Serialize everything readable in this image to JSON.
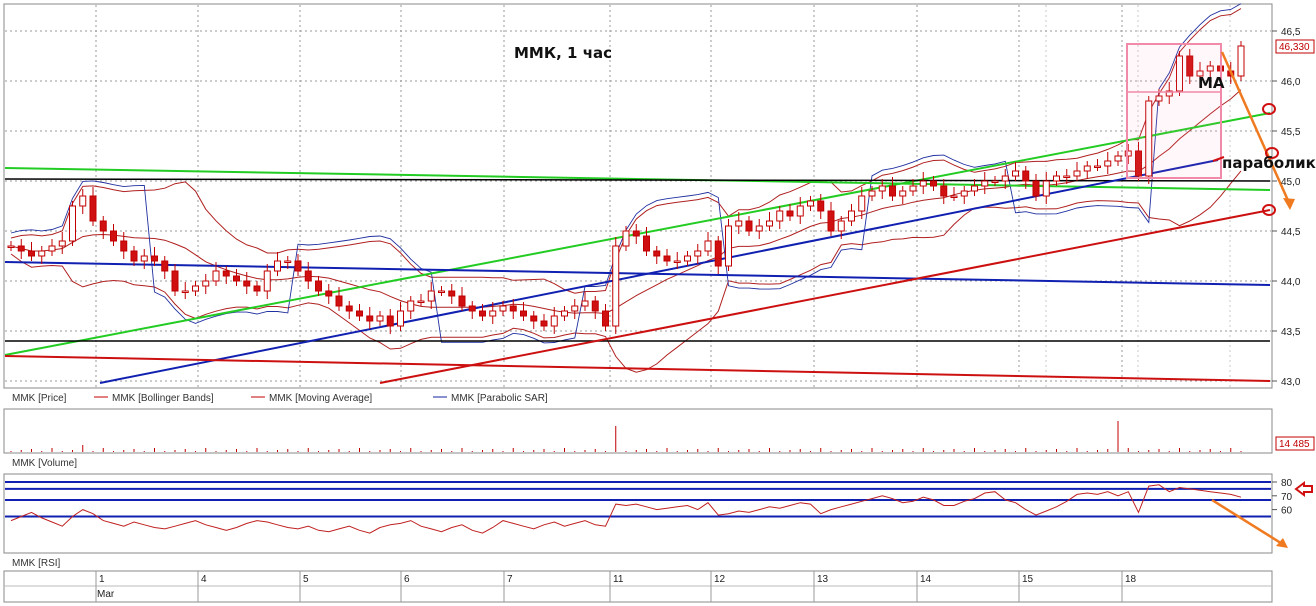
{
  "chart_data": {
    "type": "candlestick",
    "title": "ММК,  1 час",
    "annotations": {
      "ma": "МА",
      "parabolic": "параболик"
    },
    "price_axis": {
      "ylim": [
        43.0,
        46.5
      ],
      "ticks": [
        "46,5",
        "46,0",
        "45,5",
        "45,0",
        "44,5",
        "44,0",
        "43,5",
        "43,0"
      ],
      "last_price_label": "46,330"
    },
    "legend": [
      {
        "label": "MMK [Price]",
        "color": "#c00000"
      },
      {
        "label": "MMK [Bollinger Bands]",
        "color": "#c00000"
      },
      {
        "label": "MMK [Moving Average]",
        "color": "#c00000"
      },
      {
        "label": "MMK [Parabolic SAR]",
        "color": "#1020a0"
      }
    ],
    "volume": {
      "label": "MMK [Volume]",
      "last_value_label": "14 485"
    },
    "rsi": {
      "label": "MMK [RSI]",
      "ticks": [
        "80",
        "70",
        "60"
      ],
      "levels": [
        80,
        75,
        67,
        55
      ]
    },
    "dates": [
      "1",
      "4",
      "5",
      "6",
      "7",
      "11",
      "12",
      "13",
      "14",
      "15",
      "18"
    ],
    "month_label": "Mar",
    "closes": [
      44.35,
      44.3,
      44.25,
      44.3,
      44.35,
      44.4,
      44.75,
      44.85,
      44.6,
      44.5,
      44.4,
      44.3,
      44.2,
      44.25,
      44.2,
      44.1,
      43.9,
      43.9,
      43.95,
      44.0,
      44.1,
      44.05,
      44.0,
      43.95,
      43.9,
      44.1,
      44.2,
      44.2,
      44.1,
      44.0,
      43.9,
      43.85,
      43.75,
      43.7,
      43.65,
      43.6,
      43.65,
      43.55,
      43.7,
      43.8,
      43.8,
      43.9,
      43.9,
      43.85,
      43.75,
      43.7,
      43.65,
      43.7,
      43.75,
      43.7,
      43.65,
      43.6,
      43.55,
      43.65,
      43.7,
      43.75,
      43.8,
      43.7,
      43.55,
      44.35,
      44.5,
      44.45,
      44.3,
      44.25,
      44.2,
      44.2,
      44.25,
      44.3,
      44.4,
      44.15,
      44.55,
      44.6,
      44.5,
      44.55,
      44.6,
      44.7,
      44.65,
      44.75,
      44.8,
      44.7,
      44.5,
      44.6,
      44.7,
      44.85,
      44.9,
      44.95,
      44.85,
      44.9,
      44.95,
      45.0,
      44.95,
      44.85,
      44.85,
      44.9,
      44.95,
      45.0,
      45.0,
      45.05,
      45.1,
      45.0,
      44.85,
      45.0,
      45.05,
      45.05,
      45.1,
      45.15,
      45.15,
      45.2,
      45.25,
      45.3,
      45.05,
      45.8,
      45.85,
      45.9,
      46.25,
      46.05,
      46.1,
      46.15,
      46.1,
      46.05,
      46.35
    ],
    "rsi_values": [
      52,
      55,
      58,
      54,
      51,
      48,
      55,
      60,
      57,
      52,
      50,
      48,
      51,
      49,
      47,
      46,
      48,
      50,
      52,
      49,
      47,
      45,
      47,
      50,
      52,
      51,
      49,
      47,
      46,
      48,
      45,
      44,
      46,
      48,
      45,
      43,
      47,
      49,
      50,
      52,
      48,
      46,
      44,
      47,
      49,
      45,
      43,
      47,
      52,
      50,
      48,
      46,
      49,
      51,
      48,
      50,
      52,
      49,
      48,
      64,
      63,
      64,
      62,
      60,
      61,
      62,
      63,
      60,
      65,
      56,
      57,
      59,
      58,
      60,
      62,
      61,
      63,
      65,
      64,
      57,
      60,
      62,
      64,
      66,
      68,
      70,
      68,
      65,
      66,
      69,
      67,
      63,
      63,
      66,
      68,
      72,
      73,
      67,
      65,
      60,
      56,
      59,
      62,
      66,
      71,
      72,
      71,
      73,
      70,
      73,
      58,
      77,
      78,
      73,
      76,
      75,
      74,
      73,
      72,
      71,
      69
    ]
  }
}
